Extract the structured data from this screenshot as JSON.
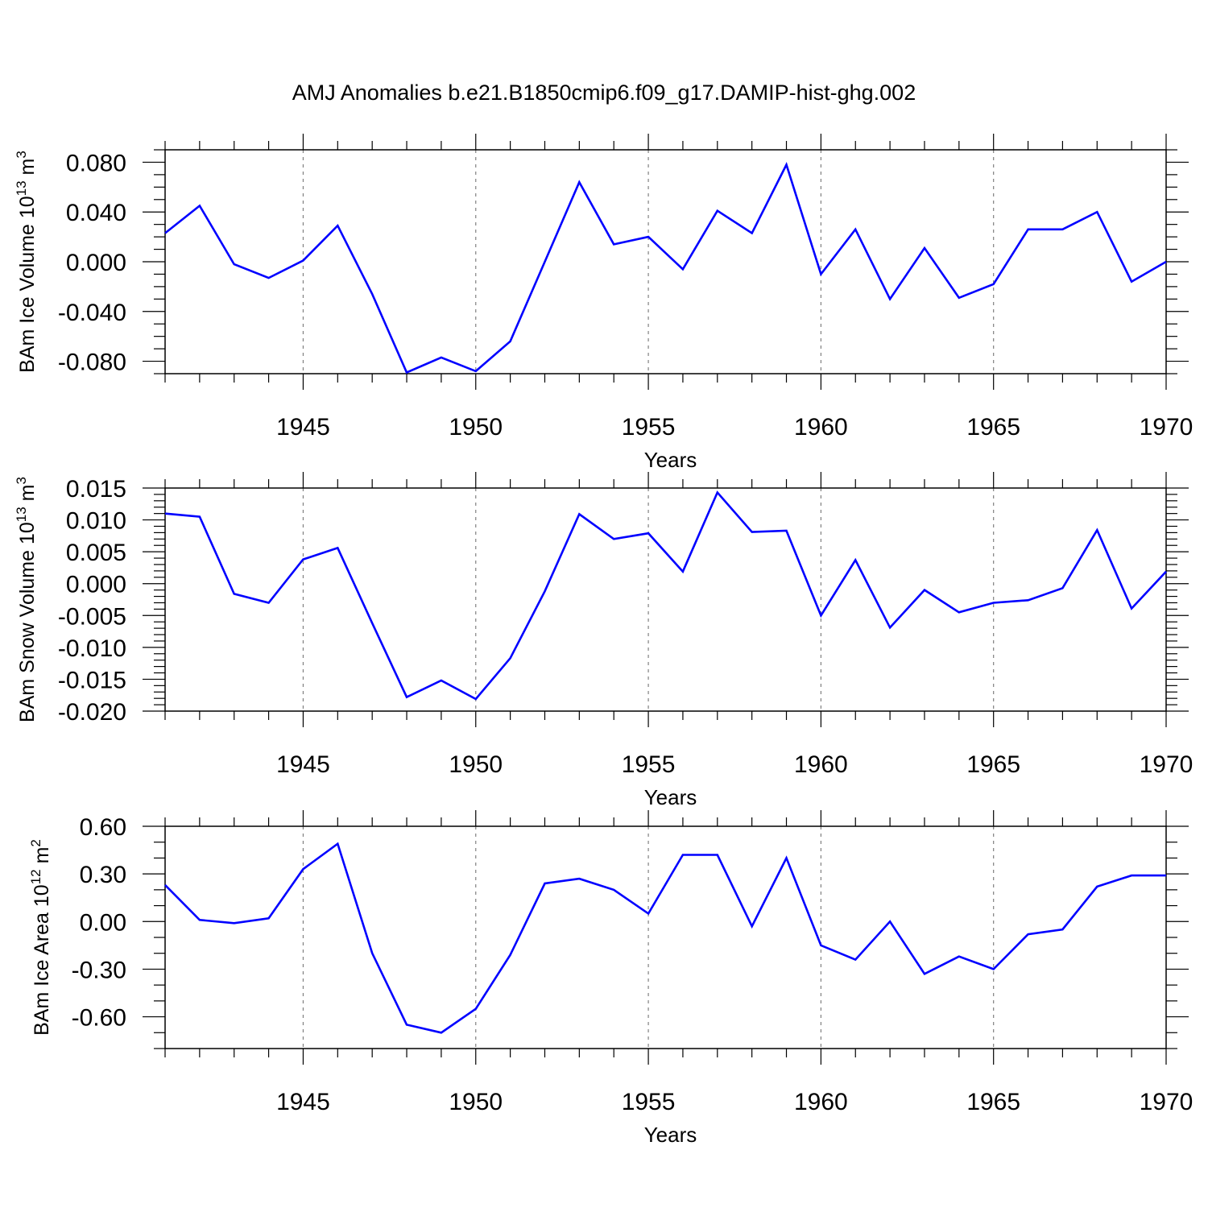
{
  "title": "AMJ Anomalies b.e21.B1850cmip6.f09_g17.DAMIP-hist-ghg.002",
  "colors": {
    "line": "#0000ff",
    "axis": "#000000",
    "grid": "#808080"
  },
  "chart_data": [
    {
      "type": "line",
      "ylabel": {
        "main": "BAm Ice Volume 10",
        "sup": "13",
        "unit": " m",
        "unit_sup": "3"
      },
      "xlabel": "Years",
      "xlim": [
        1941,
        1970
      ],
      "ylim": [
        -0.09,
        0.09
      ],
      "yticks": [
        -0.08,
        -0.04,
        0.0,
        0.04,
        0.08
      ],
      "ytick_labels": [
        "-0.080",
        "-0.040",
        "0.000",
        "0.040",
        "0.080"
      ],
      "y_minor_step": 0.01,
      "xticks": [
        1945,
        1950,
        1955,
        1960,
        1965,
        1970
      ],
      "xtick_labels": [
        "1945",
        "1950",
        "1955",
        "1960",
        "1965",
        "1970"
      ],
      "x": [
        1941,
        1942,
        1943,
        1944,
        1945,
        1946,
        1947,
        1948,
        1949,
        1950,
        1951,
        1952,
        1953,
        1954,
        1955,
        1956,
        1957,
        1958,
        1959,
        1960,
        1961,
        1962,
        1963,
        1964,
        1965,
        1966,
        1967,
        1968,
        1969,
        1970
      ],
      "values": [
        0.023,
        0.045,
        -0.002,
        -0.013,
        0.001,
        0.029,
        -0.026,
        -0.089,
        -0.077,
        -0.088,
        -0.064,
        0.0,
        0.064,
        0.014,
        0.02,
        -0.006,
        0.041,
        0.023,
        0.078,
        -0.01,
        0.026,
        -0.03,
        0.011,
        -0.029,
        -0.018,
        0.026,
        0.026,
        0.04,
        -0.016,
        0.0
      ]
    },
    {
      "type": "line",
      "ylabel": {
        "main": "BAm Snow Volume 10",
        "sup": "13",
        "unit": " m",
        "unit_sup": "3"
      },
      "xlabel": "Years",
      "xlim": [
        1941,
        1970
      ],
      "ylim": [
        -0.02,
        0.015
      ],
      "yticks": [
        -0.02,
        -0.015,
        -0.01,
        -0.005,
        0.0,
        0.005,
        0.01,
        0.015
      ],
      "ytick_labels": [
        "-0.020",
        "-0.015",
        "-0.010",
        "-0.005",
        "0.000",
        "0.005",
        "0.010",
        "0.015"
      ],
      "y_minor_step": 0.001,
      "xticks": [
        1945,
        1950,
        1955,
        1960,
        1965,
        1970
      ],
      "xtick_labels": [
        "1945",
        "1950",
        "1955",
        "1960",
        "1965",
        "1970"
      ],
      "x": [
        1941,
        1942,
        1943,
        1944,
        1945,
        1946,
        1947,
        1948,
        1949,
        1950,
        1951,
        1952,
        1953,
        1954,
        1955,
        1956,
        1957,
        1958,
        1959,
        1960,
        1961,
        1962,
        1963,
        1964,
        1965,
        1966,
        1967,
        1968,
        1969,
        1970
      ],
      "values": [
        0.011,
        0.0105,
        -0.0016,
        -0.003,
        0.0038,
        0.0056,
        -0.0062,
        -0.0178,
        -0.0152,
        -0.0181,
        -0.0117,
        -0.0012,
        0.0109,
        0.007,
        0.0079,
        0.0019,
        0.0143,
        0.0081,
        0.0083,
        -0.005,
        0.0037,
        -0.0069,
        -0.001,
        -0.0045,
        -0.003,
        -0.0026,
        -0.0007,
        0.0084,
        -0.0039,
        0.0019
      ]
    },
    {
      "type": "line",
      "ylabel": {
        "main": "BAm Ice Area 10",
        "sup": "12",
        "unit": " m",
        "unit_sup": "2"
      },
      "xlabel": "Years",
      "xlim": [
        1941,
        1970
      ],
      "ylim": [
        -0.8,
        0.6
      ],
      "yticks": [
        -0.6,
        -0.3,
        0.0,
        0.3,
        0.6
      ],
      "ytick_labels": [
        "-0.60",
        "-0.30",
        "0.00",
        "0.30",
        "0.60"
      ],
      "y_minor_step": 0.1,
      "xticks": [
        1945,
        1950,
        1955,
        1960,
        1965,
        1970
      ],
      "xtick_labels": [
        "1945",
        "1950",
        "1955",
        "1960",
        "1965",
        "1970"
      ],
      "x": [
        1941,
        1942,
        1943,
        1944,
        1945,
        1946,
        1947,
        1948,
        1949,
        1950,
        1951,
        1952,
        1953,
        1954,
        1955,
        1956,
        1957,
        1958,
        1959,
        1960,
        1961,
        1962,
        1963,
        1964,
        1965,
        1966,
        1967,
        1968,
        1969,
        1970
      ],
      "values": [
        0.23,
        0.01,
        -0.01,
        0.02,
        0.33,
        0.49,
        -0.2,
        -0.65,
        -0.7,
        -0.55,
        -0.21,
        0.24,
        0.27,
        0.2,
        0.05,
        0.42,
        0.42,
        -0.03,
        0.4,
        -0.15,
        -0.24,
        0.0,
        -0.33,
        -0.22,
        -0.3,
        -0.08,
        -0.05,
        0.22,
        0.29,
        0.29
      ]
    }
  ]
}
